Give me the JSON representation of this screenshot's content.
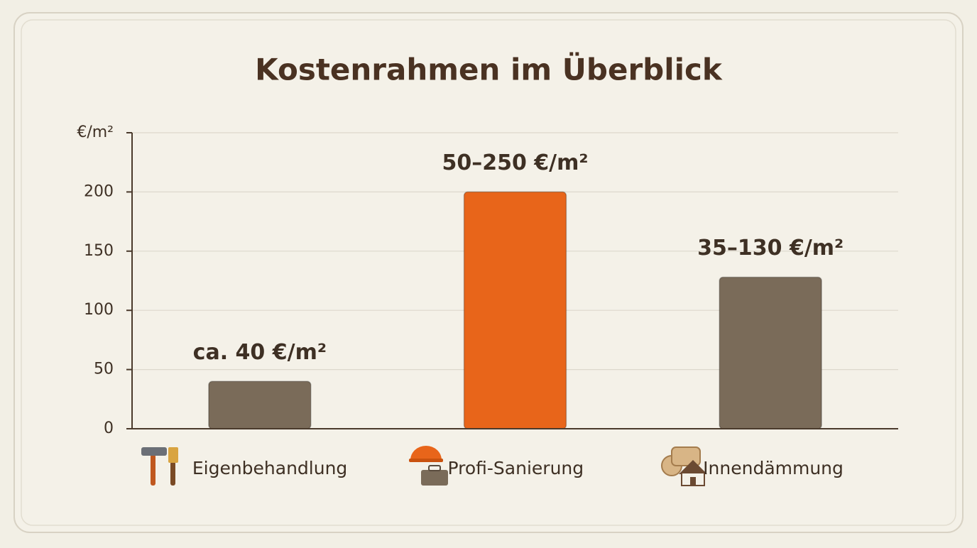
{
  "chart_data": {
    "type": "bar",
    "title": "Kostenrahmen im Überblick",
    "categories": [
      "Eigenbehandlung",
      "Profi-Sanierung",
      "Innendämmung"
    ],
    "series": [
      {
        "name": null,
        "values": [
          40,
          200,
          128
        ],
        "colors": [
          "#7a6b59",
          "#e8651a",
          "#7a6b59"
        ]
      }
    ],
    "annotations": [
      "ca. 40 €/m²",
      "50–250 €/m²",
      "35–130 €/m²"
    ],
    "ylim": [
      0,
      250
    ],
    "yticks": [
      0,
      50,
      100,
      150,
      200,
      {
        "value": 250,
        "label": "€/m²"
      }
    ],
    "grid": true
  }
}
